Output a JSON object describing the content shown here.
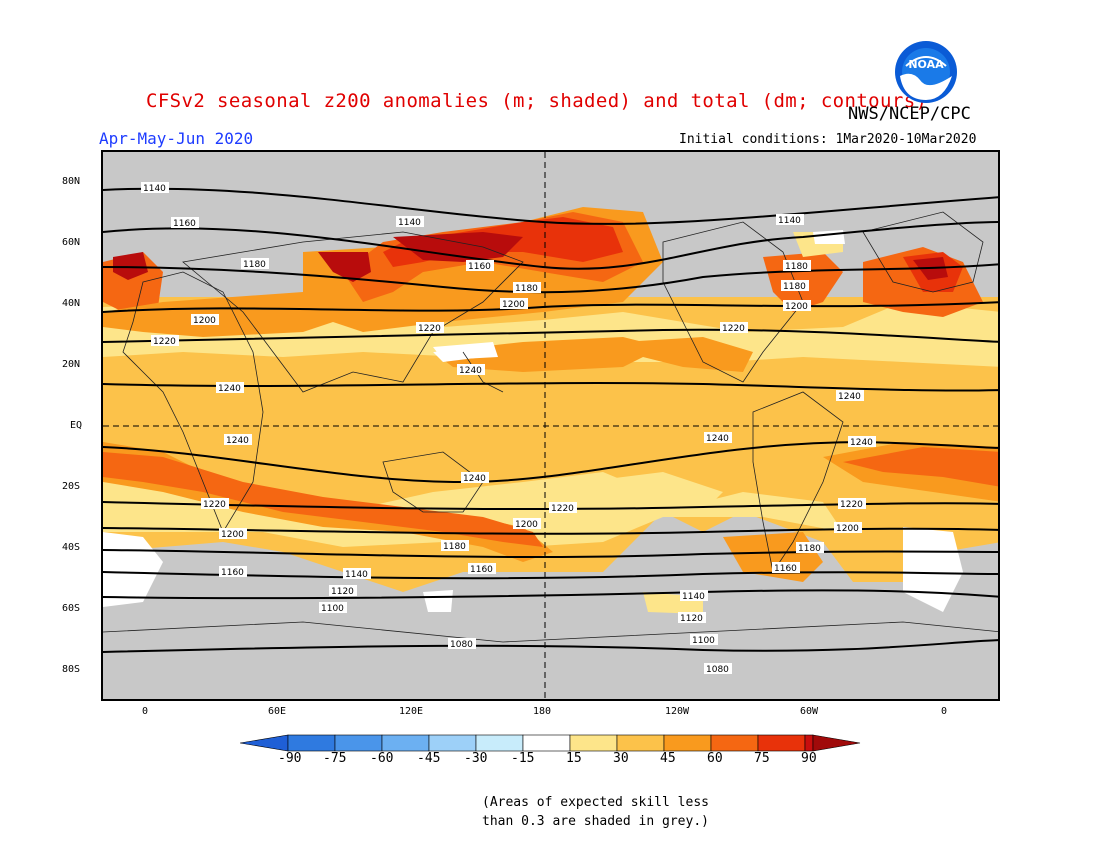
{
  "title": "CFSv2 seasonal z200 anomalies (m; shaded) and total (dm; contours)",
  "agency": "NWS/NCEP/CPC",
  "logo_text": "NOAA",
  "season": "Apr-May-Jun 2020",
  "initial_conditions": "Initial conditions: 1Mar2020-10Mar2020",
  "lat_labels": [
    "80N",
    "60N",
    "40N",
    "20N",
    "EQ",
    "20S",
    "40S",
    "60S",
    "80S"
  ],
  "lon_labels": [
    "0",
    "60E",
    "120E",
    "180",
    "120W",
    "60W",
    "0"
  ],
  "colorbar": {
    "labels": [
      "-90",
      "-75",
      "-60",
      "-45",
      "-30",
      "-15",
      "15",
      "30",
      "45",
      "60",
      "75",
      "90"
    ],
    "colors": [
      "#1f5fd6",
      "#2f7ae0",
      "#4a95ea",
      "#6cb0f2",
      "#9dd0f8",
      "#c8ecfb",
      "#ffffff",
      "#fde58a",
      "#fcc24a",
      "#f99a1e",
      "#f56712",
      "#e8320a",
      "#c80e0e",
      "#a00a0a"
    ]
  },
  "contour_labels": [
    "1140",
    "1160",
    "1180",
    "1200",
    "1220",
    "1240",
    "1080",
    "1100",
    "1120"
  ],
  "skill_note": [
    "(Areas of expected skill less",
    "than 0.3 are shaded in grey.)"
  ],
  "anomaly_colors": {
    "c15": "#fde58a",
    "c30": "#fcc24a",
    "c45": "#f99a1e",
    "c60": "#f56712",
    "c75": "#e8320a",
    "c90": "#b80c0c",
    "grey": "#c8c8c8",
    "white": "#ffffff"
  }
}
